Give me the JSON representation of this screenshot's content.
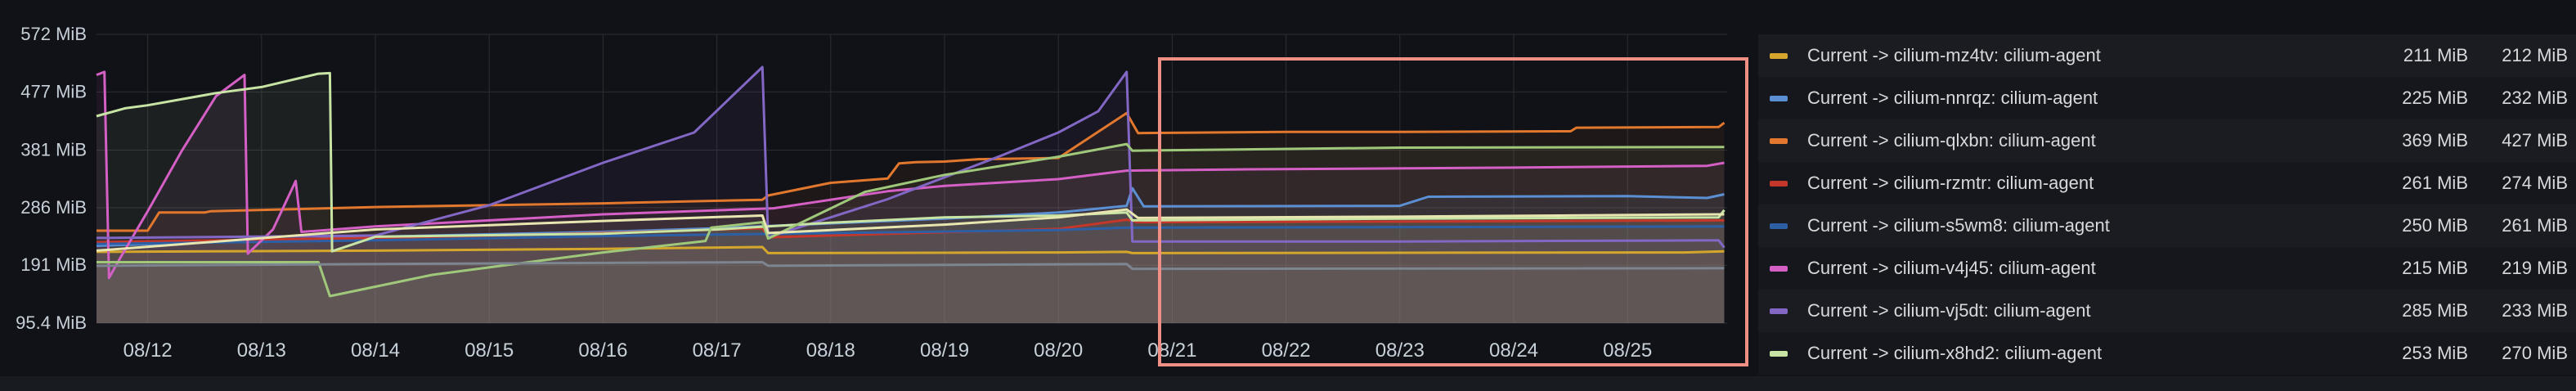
{
  "colors": {
    "background": "#111217",
    "grid": "#2c2e33",
    "highlight_box": "#f08f85"
  },
  "chart_data": {
    "type": "line",
    "title": "",
    "xlabel": "",
    "ylabel": "",
    "ylim": [
      95.4,
      572
    ],
    "xlim": [
      "08/11 13:00",
      "08/25 21:00"
    ],
    "y_ticks": [
      {
        "value": 95.4,
        "label": "95.4 MiB"
      },
      {
        "value": 191,
        "label": "191 MiB"
      },
      {
        "value": 286,
        "label": "286 MiB"
      },
      {
        "value": 381,
        "label": "381 MiB"
      },
      {
        "value": 477,
        "label": "477 MiB"
      },
      {
        "value": 572,
        "label": "572 MiB"
      }
    ],
    "x_ticks": [
      {
        "value": 12,
        "label": "08/12"
      },
      {
        "value": 13,
        "label": "08/13"
      },
      {
        "value": 14,
        "label": "08/14"
      },
      {
        "value": 15,
        "label": "08/15"
      },
      {
        "value": 16,
        "label": "08/16"
      },
      {
        "value": 17,
        "label": "08/17"
      },
      {
        "value": 18,
        "label": "08/18"
      },
      {
        "value": 19,
        "label": "08/19"
      },
      {
        "value": 20,
        "label": "08/20"
      },
      {
        "value": 21,
        "label": "08/21"
      },
      {
        "value": 22,
        "label": "08/22"
      },
      {
        "value": 23,
        "label": "08/23"
      },
      {
        "value": 24,
        "label": "08/24"
      },
      {
        "value": 25,
        "label": "08/25"
      }
    ],
    "grid": true,
    "legend_position": "right",
    "series": [
      {
        "name": "Current -> cilium-mz4tv: cilium-agent",
        "color": "#d4a72c",
        "v1": "211 MiB",
        "v2": "212 MiB",
        "points": [
          [
            11.55,
            213
          ],
          [
            14.0,
            215
          ],
          [
            16.0,
            218
          ],
          [
            17.4,
            221
          ],
          [
            17.45,
            211
          ],
          [
            20.0,
            212
          ],
          [
            20.6,
            213
          ],
          [
            20.65,
            211
          ],
          [
            25.5,
            212
          ],
          [
            25.85,
            214
          ]
        ]
      },
      {
        "name": "Current -> cilium-nnrqz: cilium-agent",
        "color": "#5b8fd3",
        "v1": "225 MiB",
        "v2": "232 MiB",
        "points": [
          [
            11.55,
            223
          ],
          [
            14.0,
            238
          ],
          [
            16.0,
            246
          ],
          [
            17.0,
            252
          ],
          [
            19.0,
            268
          ],
          [
            20.0,
            278
          ],
          [
            20.6,
            289
          ],
          [
            20.65,
            318
          ],
          [
            20.75,
            288
          ],
          [
            23.0,
            289
          ],
          [
            23.25,
            304
          ],
          [
            25.0,
            305
          ],
          [
            25.7,
            302
          ],
          [
            25.85,
            308
          ]
        ]
      },
      {
        "name": "Current -> cilium-qlxbn: cilium-agent",
        "color": "#e2772e",
        "v1": "369 MiB",
        "v2": "427 MiB",
        "points": [
          [
            11.55,
            248
          ],
          [
            12.0,
            248
          ],
          [
            12.1,
            278
          ],
          [
            12.5,
            278
          ],
          [
            12.55,
            280
          ],
          [
            14.0,
            287
          ],
          [
            16.0,
            293
          ],
          [
            17.4,
            299
          ],
          [
            17.45,
            306
          ],
          [
            18.0,
            327
          ],
          [
            18.5,
            334
          ],
          [
            18.6,
            359
          ],
          [
            18.75,
            361
          ],
          [
            19.0,
            362
          ],
          [
            19.3,
            366
          ],
          [
            20.0,
            368
          ],
          [
            20.6,
            442
          ],
          [
            20.7,
            409
          ],
          [
            22.0,
            411
          ],
          [
            23.0,
            411
          ],
          [
            24.5,
            412
          ],
          [
            24.55,
            418
          ],
          [
            25.8,
            419
          ],
          [
            25.85,
            426
          ]
        ]
      },
      {
        "name": "Current -> cilium-rzmtr: cilium-agent",
        "color": "#c4372a",
        "v1": "261 MiB",
        "v2": "274 MiB",
        "points": [
          [
            11.55,
            229
          ],
          [
            14.0,
            236
          ],
          [
            16.0,
            244
          ],
          [
            17.4,
            252
          ],
          [
            17.45,
            237
          ],
          [
            20.0,
            251
          ],
          [
            20.6,
            266
          ],
          [
            20.7,
            262
          ],
          [
            23.0,
            263
          ],
          [
            25.85,
            265
          ]
        ]
      },
      {
        "name": "Current -> cilium-s5wm8: cilium-agent",
        "color": "#2d5fa5",
        "v1": "250 MiB",
        "v2": "261 MiB",
        "points": [
          [
            11.55,
            226
          ],
          [
            14.0,
            232
          ],
          [
            16.0,
            239
          ],
          [
            18.0,
            244
          ],
          [
            20.0,
            249
          ],
          [
            20.6,
            253
          ],
          [
            25.85,
            255
          ]
        ]
      },
      {
        "name": "Current -> cilium-v4j45: cilium-agent",
        "color": "#d45fc5",
        "v1": "215 MiB",
        "v2": "219 MiB",
        "points": [
          [
            11.55,
            505
          ],
          [
            11.62,
            510
          ],
          [
            11.66,
            170
          ],
          [
            11.75,
            200
          ],
          [
            12.0,
            280
          ],
          [
            12.3,
            380
          ],
          [
            12.6,
            470
          ],
          [
            12.85,
            505
          ],
          [
            12.88,
            210
          ],
          [
            13.1,
            250
          ],
          [
            13.3,
            330
          ],
          [
            13.35,
            246
          ],
          [
            14.0,
            255
          ],
          [
            16.0,
            275
          ],
          [
            17.5,
            285
          ],
          [
            18.5,
            313
          ],
          [
            19.0,
            322
          ],
          [
            20.0,
            333
          ],
          [
            20.6,
            347
          ],
          [
            21.5,
            349
          ],
          [
            24.0,
            352
          ],
          [
            25.7,
            355
          ],
          [
            25.85,
            360
          ]
        ]
      },
      {
        "name": "Current -> cilium-vj5dt: cilium-agent",
        "color": "#8267c4",
        "v1": "285 MiB",
        "v2": "233 MiB",
        "points": [
          [
            11.55,
            236
          ],
          [
            14.0,
            240
          ],
          [
            15.0,
            290
          ],
          [
            16.0,
            360
          ],
          [
            16.8,
            410
          ],
          [
            17.4,
            518
          ],
          [
            17.45,
            237
          ],
          [
            18.5,
            300
          ],
          [
            19.5,
            372
          ],
          [
            20.0,
            410
          ],
          [
            20.35,
            445
          ],
          [
            20.6,
            510
          ],
          [
            20.65,
            230
          ],
          [
            23.0,
            230
          ],
          [
            25.8,
            232
          ],
          [
            25.85,
            220
          ]
        ]
      },
      {
        "name": "Current -> cilium-x8hd2: cilium-agent",
        "color": "#c8e4a4",
        "v1": "253 MiB",
        "v2": "270 MiB",
        "points": [
          [
            11.55,
            437
          ],
          [
            11.8,
            450
          ],
          [
            12.0,
            455
          ],
          [
            12.6,
            475
          ],
          [
            13.0,
            485
          ],
          [
            13.5,
            507
          ],
          [
            13.6,
            508
          ],
          [
            13.62,
            214
          ],
          [
            14.0,
            238
          ],
          [
            16.0,
            243
          ],
          [
            17.0,
            250
          ],
          [
            18.0,
            261
          ],
          [
            19.0,
            270
          ],
          [
            20.0,
            273
          ],
          [
            20.6,
            278
          ],
          [
            20.65,
            265
          ],
          [
            23.0,
            268
          ],
          [
            25.8,
            270
          ],
          [
            25.85,
            282
          ]
        ]
      },
      {
        "name": "",
        "color": "#9fc87b",
        "points": [
          [
            11.55,
            196
          ],
          [
            13.5,
            196
          ],
          [
            13.6,
            140
          ],
          [
            14.5,
            175
          ],
          [
            16.0,
            212
          ],
          [
            16.9,
            231
          ],
          [
            16.95,
            253
          ],
          [
            17.4,
            262
          ],
          [
            17.45,
            235
          ],
          [
            18.3,
            312
          ],
          [
            19.0,
            340
          ],
          [
            20.0,
            370
          ],
          [
            20.6,
            391
          ],
          [
            20.65,
            380
          ],
          [
            23.0,
            385
          ],
          [
            25.85,
            386
          ]
        ]
      },
      {
        "name": "",
        "color": "#e8e6b0",
        "points": [
          [
            11.55,
            215
          ],
          [
            14.0,
            250
          ],
          [
            16.0,
            264
          ],
          [
            17.4,
            273
          ],
          [
            17.45,
            244
          ],
          [
            19.0,
            258
          ],
          [
            20.0,
            270
          ],
          [
            20.6,
            283
          ],
          [
            20.7,
            269
          ],
          [
            23.0,
            271
          ],
          [
            25.85,
            275
          ]
        ]
      },
      {
        "name": "",
        "color": "#7c8590",
        "points": [
          [
            11.55,
            190
          ],
          [
            14.0,
            193
          ],
          [
            17.4,
            196
          ],
          [
            17.45,
            190
          ],
          [
            20.6,
            193
          ],
          [
            20.65,
            185
          ],
          [
            25.85,
            186
          ]
        ]
      }
    ]
  }
}
